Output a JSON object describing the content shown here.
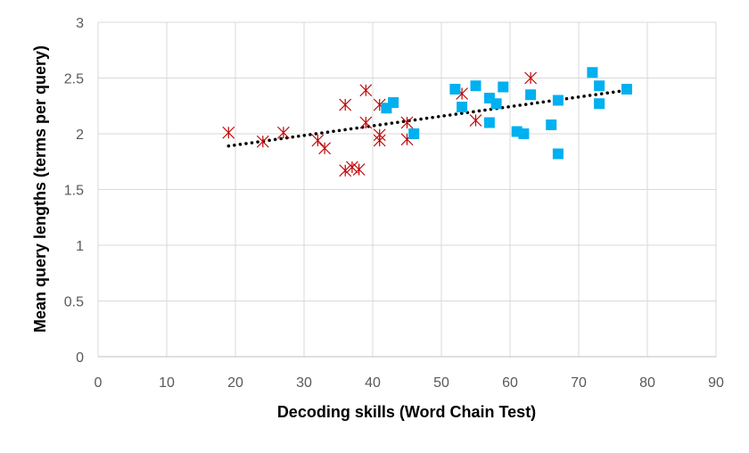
{
  "chart_data": {
    "type": "scatter",
    "xlabel": "Decoding skills (Word Chain Test)",
    "ylabel": "Mean query lengths (terms per query)",
    "xlim": [
      0,
      90
    ],
    "ylim": [
      0,
      3
    ],
    "x_ticks": [
      "0",
      "10",
      "20",
      "30",
      "40",
      "50",
      "60",
      "70",
      "80",
      "90"
    ],
    "y_ticks": [
      "0",
      "0.5",
      "1",
      "1.5",
      "2",
      "2.5",
      "3"
    ],
    "grid": true,
    "legend": "none",
    "series": [
      {
        "marker": "asterisk",
        "color": "#C00000",
        "points": [
          [
            19,
            2.01
          ],
          [
            24,
            1.93
          ],
          [
            27,
            2.01
          ],
          [
            32,
            1.94
          ],
          [
            33,
            1.87
          ],
          [
            36,
            2.26
          ],
          [
            36,
            1.67
          ],
          [
            37,
            1.7
          ],
          [
            38,
            1.68
          ],
          [
            39,
            2.39
          ],
          [
            39,
            2.1
          ],
          [
            41,
            1.99
          ],
          [
            41,
            1.94
          ],
          [
            41,
            2.26
          ],
          [
            45,
            2.1
          ],
          [
            45,
            1.95
          ],
          [
            53,
            2.36
          ],
          [
            55,
            2.12
          ],
          [
            63,
            2.5
          ]
        ]
      },
      {
        "marker": "square",
        "color": "#00B0F0",
        "points": [
          [
            42,
            2.23
          ],
          [
            43,
            2.28
          ],
          [
            46,
            2.0
          ],
          [
            52,
            2.4
          ],
          [
            53,
            2.24
          ],
          [
            55,
            2.43
          ],
          [
            57,
            2.32
          ],
          [
            57,
            2.1
          ],
          [
            58,
            2.27
          ],
          [
            59,
            2.42
          ],
          [
            61,
            2.02
          ],
          [
            62,
            2.0
          ],
          [
            63,
            2.35
          ],
          [
            66,
            2.08
          ],
          [
            67,
            2.3
          ],
          [
            67,
            1.82
          ],
          [
            72,
            2.55
          ],
          [
            73,
            2.43
          ],
          [
            73,
            2.27
          ],
          [
            77,
            2.4
          ]
        ]
      }
    ],
    "trendline": {
      "style": "dotted",
      "color": "#000000",
      "x": [
        19,
        77
      ],
      "y": [
        1.89,
        2.39
      ]
    }
  }
}
